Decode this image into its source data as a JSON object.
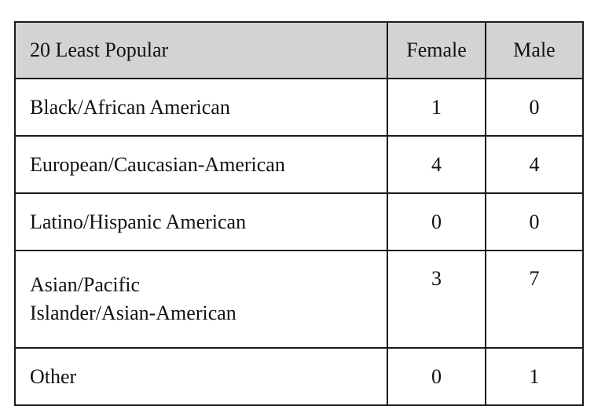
{
  "table": {
    "headers": [
      "20 Least Popular",
      "Female",
      "Male"
    ],
    "rows": [
      {
        "label": "Black/African American",
        "female": "1",
        "male": "0"
      },
      {
        "label": "European/Caucasian-American",
        "female": "4",
        "male": "4"
      },
      {
        "label": "Latino/Hispanic American",
        "female": "0",
        "male": "0"
      },
      {
        "label_line1": "Asian/Pacific",
        "label_line2": "Islander/Asian-American",
        "female": "3",
        "male": "7"
      },
      {
        "label": "Other",
        "female": "0",
        "male": "1"
      }
    ]
  },
  "caption": {
    "text": ""
  }
}
